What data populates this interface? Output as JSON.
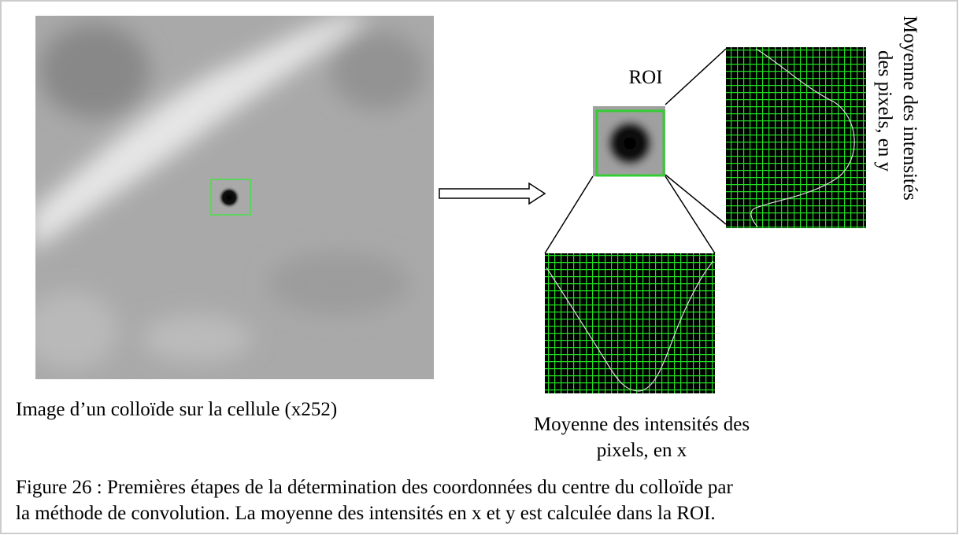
{
  "figure": {
    "image_label": "Image d’un colloïde sur la cellule (x252)",
    "roi_label": "ROI",
    "profile_x_label": [
      "Moyenne des intensités des",
      "pixels, en x"
    ],
    "profile_y_label": [
      "Moyenne des intensités",
      "des pixels, en y"
    ],
    "caption": [
      "Figure 26 : Premières étapes de la détermination des coordonnées du centre du colloïde par",
      "la méthode de convolution. La moyenne des intensités en x et y est calculée dans la ROI."
    ]
  }
}
